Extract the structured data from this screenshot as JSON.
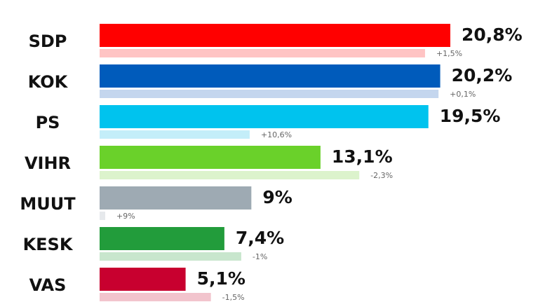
{
  "chart_data": {
    "type": "bar",
    "categories": [
      "SDP",
      "KOK",
      "PS",
      "VIHR",
      "MUUT",
      "KESK",
      "VAS"
    ],
    "values": [
      20.8,
      20.2,
      19.5,
      13.1,
      9,
      7.4,
      5.1
    ],
    "value_labels": [
      "20,8%",
      "20,2%",
      "19,5%",
      "13,1%",
      "9%",
      "7,4%",
      "5,1%"
    ],
    "changes": [
      1.5,
      0.1,
      10.6,
      -2.3,
      9,
      -1,
      -1.5
    ],
    "change_labels": [
      "+1,5%",
      "+0,1%",
      "+10,6%",
      "-2,3%",
      "+9%",
      "-1%",
      "-1,5%"
    ],
    "colors": [
      "#ff0000",
      "#005bbb",
      "#00c3ee",
      "#6ad12a",
      "#9eaab3",
      "#229c3b",
      "#c8002f"
    ],
    "light_colors": [
      "#ffc4c4",
      "#c4d6ee",
      "#c4eef9",
      "#dcf3cc",
      "#e6e9ec",
      "#c8e6cd",
      "#f2c4cd"
    ]
  }
}
